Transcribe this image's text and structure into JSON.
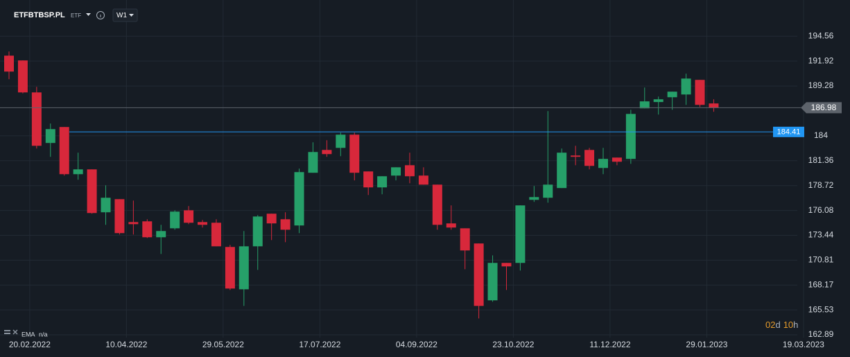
{
  "header": {
    "symbol": "ETFBTBSP.PL",
    "instrument_type": "ETF",
    "interval": "W1"
  },
  "indicator": {
    "name": "EMA",
    "value": "n/a"
  },
  "countdown": {
    "days": "02",
    "days_unit": "d",
    "hours": "10",
    "hours_unit": "h"
  },
  "chart_data": {
    "type": "candlestick",
    "categories": [
      null,
      null,
      "20.02.2022",
      null,
      null,
      null,
      null,
      null,
      null,
      "10.04.2022",
      null,
      null,
      null,
      null,
      null,
      null,
      "29.05.2022",
      null,
      null,
      null,
      null,
      null,
      null,
      "17.07.2022",
      null,
      null,
      null,
      null,
      null,
      null,
      "04.09.2022",
      null,
      null,
      null,
      null,
      null,
      null,
      "23.10.2022",
      null,
      null,
      null,
      null,
      null,
      null,
      "11.12.2022",
      null,
      null,
      null,
      null,
      null,
      null,
      "29.01.2023",
      null,
      null,
      null,
      null,
      null,
      null,
      "19.03.2023"
    ],
    "open": [
      192.5,
      191.99,
      188.6,
      183.24,
      184.93,
      179.93,
      180.44,
      175.89,
      177.28,
      174.85,
      174.93,
      173.24,
      174.19,
      176.1,
      174.85,
      174.78,
      172.21,
      167.72,
      172.28,
      175.74,
      175.15,
      174.49,
      180.08,
      182.5,
      182.72,
      184.12,
      180.22,
      178.53,
      179.78,
      180.88,
      179.78,
      178.82,
      174.71,
      174.19,
      172.58,
      166.55,
      170.52,
      170.52,
      177.21,
      177.43,
      178.46,
      181.91,
      182.5,
      180.59,
      181.69,
      181.55,
      186.91,
      187.58,
      188.09,
      188.38,
      189.93,
      187.43,
      null,
      null,
      null,
      null,
      null,
      null,
      null
    ],
    "high": [
      192.94,
      192.0,
      189.19,
      185.3,
      184.93,
      182.21,
      180.44,
      178.75,
      177.28,
      177.13,
      175.15,
      174.56,
      176.1,
      176.55,
      175.07,
      175.15,
      172.43,
      173.9,
      175.59,
      175.74,
      175.89,
      180.52,
      183.31,
      183.53,
      184.34,
      184.34,
      180.22,
      179.71,
      180.66,
      182.21,
      180.66,
      178.82,
      176.62,
      174.19,
      172.58,
      171.32,
      170.52,
      176.62,
      178.68,
      186.62,
      182.65,
      182.94,
      182.72,
      182.72,
      181.69,
      186.76,
      189.12,
      188.16,
      188.68,
      190.59,
      189.93,
      187.87,
      null,
      null,
      null,
      null,
      null,
      null,
      null
    ],
    "low": [
      190.0,
      188.5,
      182.65,
      181.77,
      179.78,
      179.34,
      175.74,
      174.56,
      173.53,
      173.53,
      173.16,
      171.47,
      174.04,
      174.63,
      174.27,
      172.28,
      167.65,
      165.96,
      169.78,
      172.94,
      172.72,
      173.68,
      180.08,
      181.77,
      181.84,
      179.27,
      177.72,
      177.8,
      179.27,
      178.97,
      178.82,
      174.04,
      174.04,
      169.85,
      164.63,
      166.4,
      167.65,
      169.71,
      176.99,
      176.91,
      178.46,
      180.88,
      180.44,
      179.93,
      180.88,
      181.03,
      186.91,
      186.25,
      186.76,
      187.28,
      187.06,
      186.55,
      null,
      null,
      null,
      null,
      null,
      null,
      null
    ],
    "close": [
      190.81,
      188.6,
      182.94,
      184.71,
      179.93,
      180.44,
      175.81,
      177.43,
      173.68,
      174.63,
      173.24,
      173.9,
      175.96,
      174.78,
      174.56,
      172.28,
      167.8,
      172.28,
      175.44,
      174.71,
      174.04,
      180.15,
      182.28,
      182.06,
      184.12,
      180.08,
      178.53,
      179.71,
      180.66,
      179.71,
      178.82,
      174.56,
      174.27,
      171.84,
      165.96,
      170.52,
      170.15,
      176.62,
      177.5,
      178.82,
      182.21,
      181.77,
      180.81,
      181.55,
      181.25,
      186.32,
      187.65,
      187.87,
      188.68,
      190.07,
      187.28,
      186.98,
      null,
      null,
      null,
      null,
      null,
      null,
      null
    ],
    "up_color": "#26a069",
    "down_color": "#d8283b",
    "ylim": [
      162.6,
      198.4
    ],
    "yticks": [
      162.89,
      165.53,
      168.17,
      170.81,
      173.44,
      176.08,
      178.72,
      181.36,
      184.0,
      189.28,
      191.92,
      194.56
    ],
    "price_line": {
      "value": 186.98,
      "color": "#5d636b"
    },
    "alert_line": {
      "value": 184.41,
      "color": "#2196f3"
    },
    "grid": true
  }
}
